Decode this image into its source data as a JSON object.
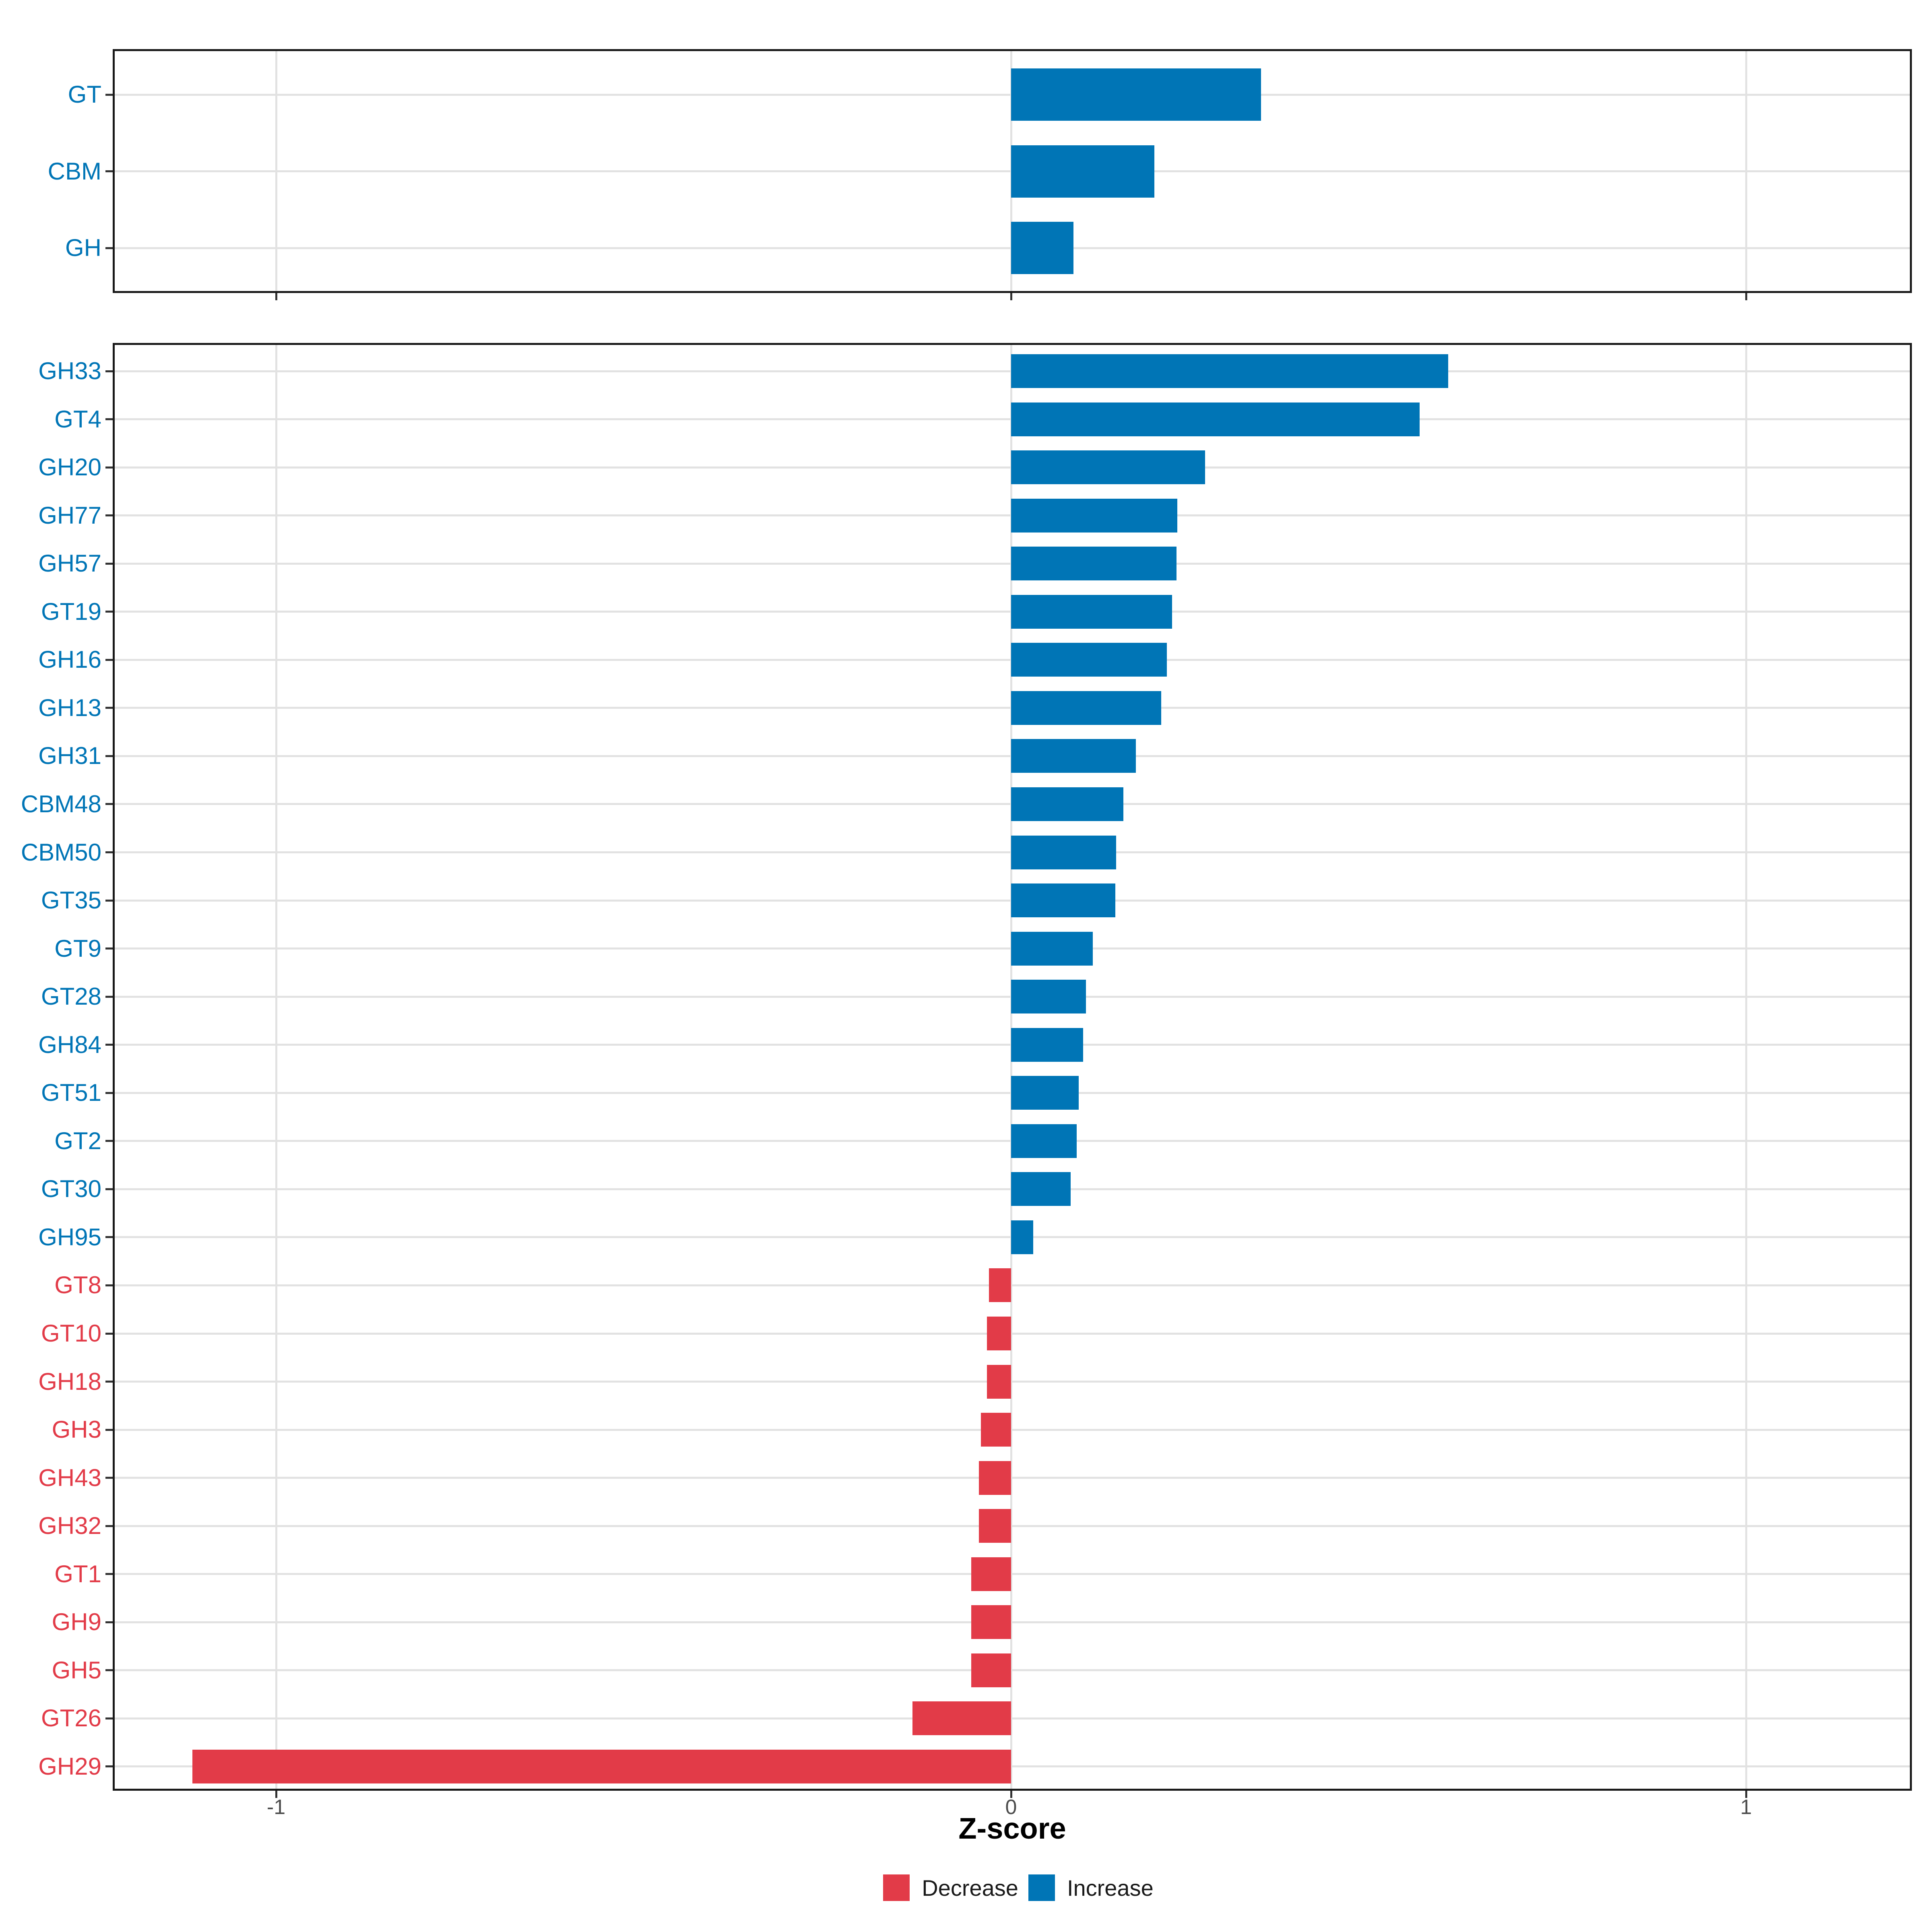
{
  "figure": {
    "xlabel": "Z-score",
    "x_ticks": [
      {
        "label": "-1",
        "value": -1
      },
      {
        "label": "0",
        "value": 0
      },
      {
        "label": "1",
        "value": 1
      }
    ],
    "legend": [
      {
        "label": "Decrease",
        "key": "decrease"
      },
      {
        "label": "Increase",
        "key": "increase"
      }
    ],
    "colors": {
      "increase": "#0075B6",
      "decrease": "#E23B48",
      "grid": "#E2E2E2",
      "panel_border": "#1A1A1A",
      "tick": "#333333",
      "axis_text": "#4D4D4D",
      "title_text": "#000000",
      "background": "#FFFFFF"
    }
  },
  "chart_data": [
    {
      "type": "bar",
      "orientation": "horizontal",
      "panel": "top",
      "categories": [
        "GT",
        "CBM",
        "GH"
      ],
      "values": [
        0.34,
        0.195,
        0.085
      ],
      "directions": [
        "increase",
        "increase",
        "increase"
      ],
      "xlabel": "Z-score",
      "xlim": [
        -1.22,
        1.23
      ],
      "x_ticks": [
        -1,
        0,
        1
      ],
      "grid": true,
      "legend_position": "bottom"
    },
    {
      "type": "bar",
      "orientation": "horizontal",
      "panel": "bottom",
      "categories": [
        "GH33",
        "GT4",
        "GH20",
        "GH77",
        "GH57",
        "GT19",
        "GH16",
        "GH13",
        "GH31",
        "CBM48",
        "CBM50",
        "GT35",
        "GT9",
        "GT28",
        "GH84",
        "GT51",
        "GT2",
        "GT30",
        "GH95",
        "GT8",
        "GT10",
        "GH18",
        "GH3",
        "GH43",
        "GH32",
        "GT1",
        "GH9",
        "GH5",
        "GT26",
        "GH29"
      ],
      "values": [
        0.595,
        0.556,
        0.264,
        0.226,
        0.225,
        0.219,
        0.212,
        0.204,
        0.17,
        0.153,
        0.143,
        0.142,
        0.111,
        0.102,
        0.098,
        0.092,
        0.089,
        0.081,
        0.03,
        -0.03,
        -0.033,
        -0.033,
        -0.041,
        -0.044,
        -0.044,
        -0.054,
        -0.054,
        -0.054,
        -0.134,
        -1.114
      ],
      "directions": [
        "increase",
        "increase",
        "increase",
        "increase",
        "increase",
        "increase",
        "increase",
        "increase",
        "increase",
        "increase",
        "increase",
        "increase",
        "increase",
        "increase",
        "increase",
        "increase",
        "increase",
        "increase",
        "increase",
        "decrease",
        "decrease",
        "decrease",
        "decrease",
        "decrease",
        "decrease",
        "decrease",
        "decrease",
        "decrease",
        "decrease",
        "decrease"
      ],
      "xlabel": "Z-score",
      "xlim": [
        -1.22,
        1.23
      ],
      "x_ticks": [
        -1,
        0,
        1
      ],
      "grid": true,
      "legend_position": "bottom"
    }
  ]
}
